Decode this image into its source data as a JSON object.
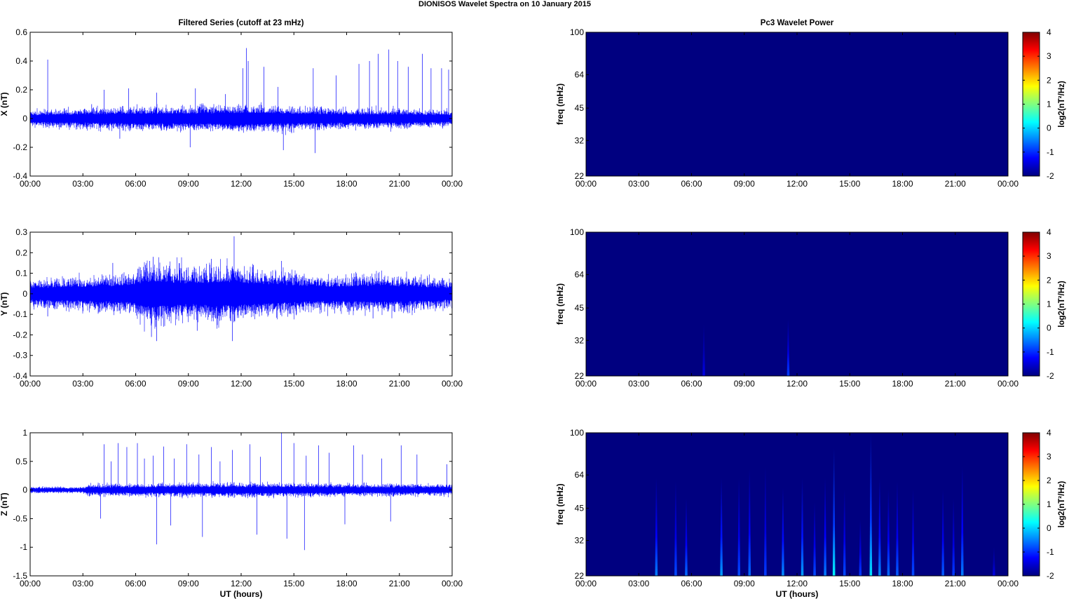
{
  "figure": {
    "title": "DIONISOS Wavelet Spectra on 10 January   2015",
    "left_title": "Filtered Series (cutoff at 23 mHz)",
    "right_title": "Pc3 Wavelet Power",
    "xlabel": "UT (hours)"
  },
  "colors": {
    "trace": "#0000ff",
    "background": "#00008f",
    "axes": "#000000",
    "colormap": "jet"
  },
  "time_ticks": [
    "00:00",
    "03:00",
    "06:00",
    "09:00",
    "12:00",
    "15:00",
    "18:00",
    "21:00",
    "00:00"
  ],
  "chart_data": [
    {
      "type": "line",
      "name": "series-x",
      "ylabel": "X (nT)",
      "xlim": [
        0,
        24
      ],
      "ylim": [
        -0.4,
        0.6
      ],
      "yticks": [
        -0.4,
        -0.2,
        0,
        0.2,
        0.4,
        0.6
      ],
      "ytick_labels": [
        "-0.4",
        "-0.2",
        "0",
        "0.2",
        "0.4",
        "0.6"
      ],
      "noise_envelope": [
        [
          0,
          0.04
        ],
        [
          3,
          0.05
        ],
        [
          6,
          0.06
        ],
        [
          9,
          0.06
        ],
        [
          12,
          0.07
        ],
        [
          15,
          0.06
        ],
        [
          18,
          0.05
        ],
        [
          21,
          0.05
        ],
        [
          24,
          0.04
        ]
      ],
      "spikes": [
        [
          1.0,
          0.41
        ],
        [
          3.5,
          0.1
        ],
        [
          4.2,
          0.2
        ],
        [
          5.6,
          0.21
        ],
        [
          7.2,
          0.18
        ],
        [
          9.4,
          0.21
        ],
        [
          11.1,
          0.17
        ],
        [
          12.1,
          0.35
        ],
        [
          12.3,
          0.49
        ],
        [
          12.4,
          0.4
        ],
        [
          13.3,
          0.36
        ],
        [
          14.1,
          0.22
        ],
        [
          16.1,
          0.35
        ],
        [
          17.4,
          0.3
        ],
        [
          18.7,
          0.38
        ],
        [
          19.3,
          0.4
        ],
        [
          19.8,
          0.45
        ],
        [
          20.4,
          0.48
        ],
        [
          20.9,
          0.4
        ],
        [
          21.5,
          0.36
        ],
        [
          22.3,
          0.45
        ],
        [
          22.8,
          0.35
        ],
        [
          23.4,
          0.35
        ],
        [
          23.8,
          0.34
        ],
        [
          9.1,
          -0.2
        ],
        [
          14.4,
          -0.22
        ],
        [
          16.2,
          -0.24
        ],
        [
          5.1,
          -0.14
        ]
      ]
    },
    {
      "type": "line",
      "name": "series-y",
      "ylabel": "Y (nT)",
      "xlim": [
        0,
        24
      ],
      "ylim": [
        -0.4,
        0.3
      ],
      "yticks": [
        -0.4,
        -0.3,
        -0.2,
        -0.1,
        0,
        0.1,
        0.2,
        0.3
      ],
      "ytick_labels": [
        "-0.4",
        "-0.3",
        "-0.2",
        "-0.1",
        "0",
        "0.1",
        "0.2",
        "0.3"
      ],
      "noise_envelope": [
        [
          0,
          0.05
        ],
        [
          3,
          0.06
        ],
        [
          5.5,
          0.07
        ],
        [
          7,
          0.11
        ],
        [
          9,
          0.09
        ],
        [
          11.5,
          0.1
        ],
        [
          14,
          0.08
        ],
        [
          17,
          0.06
        ],
        [
          20,
          0.07
        ],
        [
          24,
          0.05
        ]
      ],
      "spikes": [
        [
          11.6,
          0.28
        ],
        [
          6.8,
          0.16
        ],
        [
          7.0,
          0.18
        ],
        [
          10.3,
          0.17
        ],
        [
          12.7,
          0.14
        ],
        [
          14.3,
          0.16
        ],
        [
          4.7,
          0.15
        ],
        [
          7.2,
          -0.23
        ],
        [
          11.5,
          -0.23
        ],
        [
          6.9,
          -0.21
        ],
        [
          9.5,
          -0.18
        ],
        [
          1.0,
          -0.11
        ],
        [
          19.5,
          -0.12
        ]
      ]
    },
    {
      "type": "line",
      "name": "series-z",
      "ylabel": "Z (nT)",
      "xlim": [
        0,
        24
      ],
      "ylim": [
        -1.5,
        1
      ],
      "yticks": [
        -1.5,
        -1,
        -0.5,
        0,
        0.5,
        1
      ],
      "ytick_labels": [
        "-1.5",
        "-1",
        "-0.5",
        "0",
        "0.5",
        "1"
      ],
      "noise_envelope": [
        [
          0,
          0.04
        ],
        [
          3,
          0.04
        ],
        [
          3.3,
          0.07
        ],
        [
          6,
          0.08
        ],
        [
          12,
          0.09
        ],
        [
          18,
          0.08
        ],
        [
          24,
          0.07
        ]
      ],
      "spikes": [
        [
          4.2,
          0.8
        ],
        [
          4.6,
          0.5
        ],
        [
          5.0,
          0.82
        ],
        [
          5.5,
          0.75
        ],
        [
          6.1,
          0.82
        ],
        [
          6.5,
          0.55
        ],
        [
          7.0,
          0.6
        ],
        [
          7.6,
          0.76
        ],
        [
          8.2,
          0.55
        ],
        [
          8.9,
          0.8
        ],
        [
          9.6,
          0.62
        ],
        [
          10.3,
          0.75
        ],
        [
          10.8,
          0.5
        ],
        [
          11.5,
          0.7
        ],
        [
          12.5,
          0.8
        ],
        [
          13.1,
          0.58
        ],
        [
          14.3,
          1.0
        ],
        [
          15.0,
          0.82
        ],
        [
          15.7,
          0.6
        ],
        [
          16.4,
          0.78
        ],
        [
          17.0,
          0.65
        ],
        [
          18.4,
          0.78
        ],
        [
          18.9,
          0.62
        ],
        [
          20.0,
          0.55
        ],
        [
          21.1,
          0.78
        ],
        [
          22.0,
          0.62
        ],
        [
          23.7,
          0.45
        ],
        [
          7.2,
          -0.95
        ],
        [
          9.8,
          -0.82
        ],
        [
          14.6,
          -0.85
        ],
        [
          15.6,
          -1.05
        ],
        [
          12.9,
          -0.78
        ],
        [
          8.0,
          -0.62
        ],
        [
          17.9,
          -0.6
        ],
        [
          4.0,
          -0.5
        ],
        [
          20.5,
          -0.55
        ]
      ]
    },
    {
      "type": "heatmap",
      "name": "wavelet-x",
      "ylabel": "freq (mHz)",
      "ylim": [
        22,
        100
      ],
      "yscale": "log",
      "yticks": [
        22,
        32,
        45,
        64,
        100
      ],
      "clim": [
        -2,
        4
      ],
      "colorbar_ticks": [
        -2,
        -1,
        0,
        1,
        2,
        3,
        4
      ],
      "colorbar_label": "log2(nT²/Hz)",
      "background_power": -2,
      "streaks": []
    },
    {
      "type": "heatmap",
      "name": "wavelet-y",
      "ylabel": "freq (mHz)",
      "ylim": [
        22,
        100
      ],
      "yscale": "log",
      "yticks": [
        22,
        32,
        45,
        64,
        100
      ],
      "clim": [
        -2,
        4
      ],
      "colorbar_ticks": [
        -2,
        -1,
        0,
        1,
        2,
        3,
        4
      ],
      "colorbar_label": "log2(nT²/Hz)",
      "background_power": -2,
      "streaks": [
        [
          6.7,
          38,
          -1.4
        ],
        [
          11.5,
          40,
          -0.9
        ]
      ]
    },
    {
      "type": "heatmap",
      "name": "wavelet-z",
      "ylabel": "freq (mHz)",
      "ylim": [
        22,
        100
      ],
      "yscale": "log",
      "yticks": [
        22,
        32,
        45,
        64,
        100
      ],
      "clim": [
        -2,
        4
      ],
      "colorbar_ticks": [
        -2,
        -1,
        0,
        1,
        2,
        3,
        4
      ],
      "colorbar_label": "log2(nT²/Hz)",
      "background_power": -2,
      "streaks": [
        [
          4.0,
          62,
          -0.5
        ],
        [
          5.1,
          60,
          -0.8
        ],
        [
          5.7,
          50,
          -0.6
        ],
        [
          7.7,
          62,
          -0.3
        ],
        [
          8.7,
          62,
          -0.8
        ],
        [
          9.3,
          68,
          -0.6
        ],
        [
          10.2,
          70,
          -0.9
        ],
        [
          11.2,
          56,
          -0.4
        ],
        [
          12.3,
          62,
          -0.3
        ],
        [
          13.0,
          48,
          -0.8
        ],
        [
          13.6,
          62,
          -0.5
        ],
        [
          14.1,
          85,
          0.2
        ],
        [
          14.7,
          55,
          -0.8
        ],
        [
          15.6,
          40,
          -0.9
        ],
        [
          16.2,
          100,
          0.1
        ],
        [
          16.7,
          62,
          -0.4
        ],
        [
          17.2,
          55,
          -0.6
        ],
        [
          17.7,
          60,
          -0.7
        ],
        [
          18.6,
          55,
          -0.8
        ],
        [
          20.3,
          55,
          -0.7
        ],
        [
          20.9,
          50,
          -0.9
        ],
        [
          21.4,
          70,
          -0.5
        ],
        [
          23.2,
          30,
          -1.4
        ]
      ]
    }
  ]
}
